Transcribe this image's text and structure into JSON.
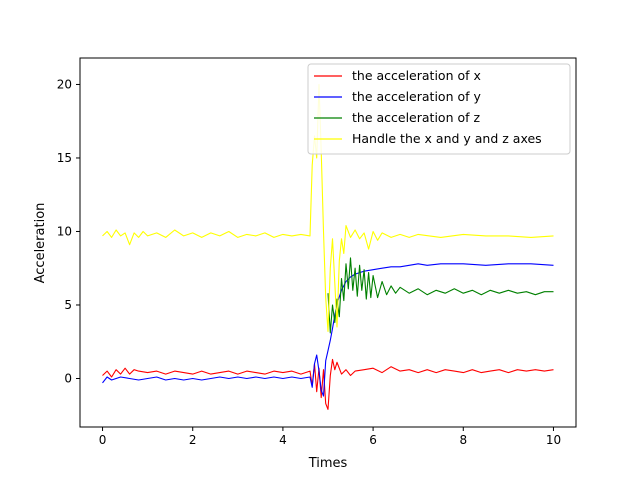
{
  "chart_data": {
    "type": "line",
    "title": "",
    "xlabel": "Times",
    "ylabel": "Acceleration",
    "xlim": [
      -0.5,
      10.5
    ],
    "ylim": [
      -3.3,
      21.8
    ],
    "xticks": [
      0,
      2,
      4,
      6,
      8,
      10
    ],
    "yticks": [
      0,
      5,
      10,
      15,
      20
    ],
    "grid": false,
    "legend_position": "top-right",
    "series": [
      {
        "name": "the acceleration of x",
        "color": "#ff0000",
        "points": [
          [
            0.0,
            0.2
          ],
          [
            0.1,
            0.5
          ],
          [
            0.2,
            0.1
          ],
          [
            0.3,
            0.6
          ],
          [
            0.4,
            0.3
          ],
          [
            0.5,
            0.7
          ],
          [
            0.6,
            0.3
          ],
          [
            0.7,
            0.6
          ],
          [
            0.8,
            0.5
          ],
          [
            1.0,
            0.4
          ],
          [
            1.2,
            0.5
          ],
          [
            1.4,
            0.3
          ],
          [
            1.6,
            0.5
          ],
          [
            1.8,
            0.4
          ],
          [
            2.0,
            0.3
          ],
          [
            2.2,
            0.5
          ],
          [
            2.4,
            0.3
          ],
          [
            2.6,
            0.4
          ],
          [
            2.8,
            0.5
          ],
          [
            3.0,
            0.3
          ],
          [
            3.2,
            0.5
          ],
          [
            3.4,
            0.4
          ],
          [
            3.6,
            0.3
          ],
          [
            3.8,
            0.5
          ],
          [
            4.0,
            0.4
          ],
          [
            4.2,
            0.5
          ],
          [
            4.4,
            0.3
          ],
          [
            4.6,
            0.5
          ],
          [
            4.65,
            -0.5
          ],
          [
            4.7,
            1.0
          ],
          [
            4.75,
            -0.9
          ],
          [
            4.8,
            0.7
          ],
          [
            4.85,
            -1.3
          ],
          [
            4.9,
            0.6
          ],
          [
            4.95,
            -1.7
          ],
          [
            5.0,
            -2.1
          ],
          [
            5.05,
            0.2
          ],
          [
            5.1,
            1.3
          ],
          [
            5.15,
            0.6
          ],
          [
            5.2,
            1.1
          ],
          [
            5.3,
            0.3
          ],
          [
            5.4,
            0.6
          ],
          [
            5.5,
            0.2
          ],
          [
            5.6,
            0.5
          ],
          [
            5.8,
            0.6
          ],
          [
            6.0,
            0.7
          ],
          [
            6.2,
            0.4
          ],
          [
            6.4,
            0.8
          ],
          [
            6.6,
            0.5
          ],
          [
            6.8,
            0.6
          ],
          [
            7.0,
            0.4
          ],
          [
            7.2,
            0.6
          ],
          [
            7.4,
            0.4
          ],
          [
            7.6,
            0.6
          ],
          [
            7.8,
            0.5
          ],
          [
            8.0,
            0.4
          ],
          [
            8.2,
            0.6
          ],
          [
            8.4,
            0.4
          ],
          [
            8.6,
            0.5
          ],
          [
            8.8,
            0.6
          ],
          [
            9.0,
            0.4
          ],
          [
            9.2,
            0.6
          ],
          [
            9.4,
            0.5
          ],
          [
            9.6,
            0.6
          ],
          [
            9.8,
            0.5
          ],
          [
            10.0,
            0.6
          ]
        ]
      },
      {
        "name": "the acceleration of y",
        "color": "#0000ff",
        "points": [
          [
            0.0,
            -0.3
          ],
          [
            0.1,
            0.1
          ],
          [
            0.2,
            -0.1
          ],
          [
            0.4,
            0.1
          ],
          [
            0.6,
            0.0
          ],
          [
            0.8,
            -0.1
          ],
          [
            1.0,
            0.0
          ],
          [
            1.2,
            0.1
          ],
          [
            1.4,
            -0.1
          ],
          [
            1.6,
            0.0
          ],
          [
            1.8,
            -0.1
          ],
          [
            2.0,
            0.0
          ],
          [
            2.2,
            -0.1
          ],
          [
            2.4,
            0.0
          ],
          [
            2.6,
            0.1
          ],
          [
            2.8,
            0.0
          ],
          [
            3.0,
            0.1
          ],
          [
            3.2,
            0.0
          ],
          [
            3.4,
            0.1
          ],
          [
            3.6,
            0.0
          ],
          [
            3.8,
            0.1
          ],
          [
            4.0,
            0.0
          ],
          [
            4.2,
            0.1
          ],
          [
            4.4,
            0.0
          ],
          [
            4.6,
            0.1
          ],
          [
            4.65,
            -0.6
          ],
          [
            4.7,
            1.0
          ],
          [
            4.75,
            1.6
          ],
          [
            4.8,
            0.5
          ],
          [
            4.85,
            -0.8
          ],
          [
            4.9,
            -1.2
          ],
          [
            4.95,
            1.2
          ],
          [
            5.0,
            1.9
          ],
          [
            5.05,
            2.6
          ],
          [
            5.1,
            3.4
          ],
          [
            5.15,
            4.3
          ],
          [
            5.2,
            5.1
          ],
          [
            5.3,
            6.0
          ],
          [
            5.4,
            6.6
          ],
          [
            5.5,
            6.9
          ],
          [
            5.6,
            7.1
          ],
          [
            5.7,
            7.2
          ],
          [
            5.8,
            7.3
          ],
          [
            6.0,
            7.4
          ],
          [
            6.2,
            7.5
          ],
          [
            6.4,
            7.6
          ],
          [
            6.6,
            7.6
          ],
          [
            6.8,
            7.7
          ],
          [
            7.0,
            7.8
          ],
          [
            7.2,
            7.7
          ],
          [
            7.5,
            7.8
          ],
          [
            8.0,
            7.8
          ],
          [
            8.5,
            7.7
          ],
          [
            9.0,
            7.8
          ],
          [
            9.5,
            7.8
          ],
          [
            10.0,
            7.7
          ]
        ]
      },
      {
        "name": "the acceleration of z",
        "color": "#008000",
        "points": [
          [
            5.0,
            5.8
          ],
          [
            5.05,
            3.1
          ],
          [
            5.1,
            5.0
          ],
          [
            5.15,
            3.8
          ],
          [
            5.2,
            5.4
          ],
          [
            5.25,
            4.2
          ],
          [
            5.3,
            6.8
          ],
          [
            5.35,
            5.3
          ],
          [
            5.4,
            7.8
          ],
          [
            5.45,
            6.1
          ],
          [
            5.5,
            8.2
          ],
          [
            5.55,
            6.0
          ],
          [
            5.6,
            7.5
          ],
          [
            5.65,
            5.6
          ],
          [
            5.7,
            7.7
          ],
          [
            5.75,
            6.0
          ],
          [
            5.8,
            7.4
          ],
          [
            5.85,
            5.4
          ],
          [
            5.9,
            7.2
          ],
          [
            5.95,
            5.5
          ],
          [
            6.0,
            7.0
          ],
          [
            6.1,
            5.5
          ],
          [
            6.2,
            6.6
          ],
          [
            6.3,
            5.7
          ],
          [
            6.4,
            6.3
          ],
          [
            6.5,
            5.8
          ],
          [
            6.6,
            6.2
          ],
          [
            6.8,
            5.8
          ],
          [
            7.0,
            6.1
          ],
          [
            7.2,
            5.7
          ],
          [
            7.4,
            6.0
          ],
          [
            7.6,
            5.8
          ],
          [
            7.8,
            6.1
          ],
          [
            8.0,
            5.8
          ],
          [
            8.2,
            6.0
          ],
          [
            8.4,
            5.7
          ],
          [
            8.6,
            6.0
          ],
          [
            8.8,
            5.8
          ],
          [
            9.0,
            6.0
          ],
          [
            9.2,
            5.8
          ],
          [
            9.4,
            5.9
          ],
          [
            9.6,
            5.7
          ],
          [
            9.8,
            5.9
          ],
          [
            10.0,
            5.9
          ]
        ]
      },
      {
        "name": "Handle the x and y and z axes",
        "color": "#ffff00",
        "points": [
          [
            0.0,
            9.7
          ],
          [
            0.1,
            10.0
          ],
          [
            0.2,
            9.6
          ],
          [
            0.3,
            10.1
          ],
          [
            0.4,
            9.7
          ],
          [
            0.5,
            9.9
          ],
          [
            0.6,
            9.1
          ],
          [
            0.7,
            9.9
          ],
          [
            0.8,
            9.6
          ],
          [
            0.9,
            10.0
          ],
          [
            1.0,
            9.7
          ],
          [
            1.2,
            9.9
          ],
          [
            1.4,
            9.6
          ],
          [
            1.6,
            10.1
          ],
          [
            1.8,
            9.7
          ],
          [
            2.0,
            9.9
          ],
          [
            2.2,
            9.6
          ],
          [
            2.4,
            9.9
          ],
          [
            2.6,
            9.7
          ],
          [
            2.8,
            10.0
          ],
          [
            3.0,
            9.6
          ],
          [
            3.2,
            9.8
          ],
          [
            3.4,
            9.7
          ],
          [
            3.6,
            9.9
          ],
          [
            3.8,
            9.6
          ],
          [
            4.0,
            9.8
          ],
          [
            4.2,
            9.7
          ],
          [
            4.4,
            9.8
          ],
          [
            4.6,
            9.7
          ],
          [
            4.65,
            14.5
          ],
          [
            4.7,
            16.5
          ],
          [
            4.75,
            15.0
          ],
          [
            4.8,
            20.0
          ],
          [
            4.85,
            15.5
          ],
          [
            4.9,
            10.0
          ],
          [
            4.95,
            5.5
          ],
          [
            5.0,
            3.2
          ],
          [
            5.05,
            7.5
          ],
          [
            5.1,
            9.5
          ],
          [
            5.15,
            6.5
          ],
          [
            5.2,
            3.5
          ],
          [
            5.25,
            8.0
          ],
          [
            5.3,
            9.5
          ],
          [
            5.35,
            8.5
          ],
          [
            5.4,
            10.4
          ],
          [
            5.5,
            9.6
          ],
          [
            5.6,
            10.1
          ],
          [
            5.7,
            9.5
          ],
          [
            5.8,
            9.9
          ],
          [
            5.9,
            8.8
          ],
          [
            6.0,
            10.0
          ],
          [
            6.1,
            9.4
          ],
          [
            6.2,
            9.9
          ],
          [
            6.4,
            9.6
          ],
          [
            6.6,
            9.8
          ],
          [
            6.8,
            9.6
          ],
          [
            7.0,
            9.8
          ],
          [
            7.5,
            9.6
          ],
          [
            8.0,
            9.8
          ],
          [
            8.5,
            9.7
          ],
          [
            9.0,
            9.7
          ],
          [
            9.5,
            9.6
          ],
          [
            10.0,
            9.7
          ]
        ]
      }
    ]
  }
}
